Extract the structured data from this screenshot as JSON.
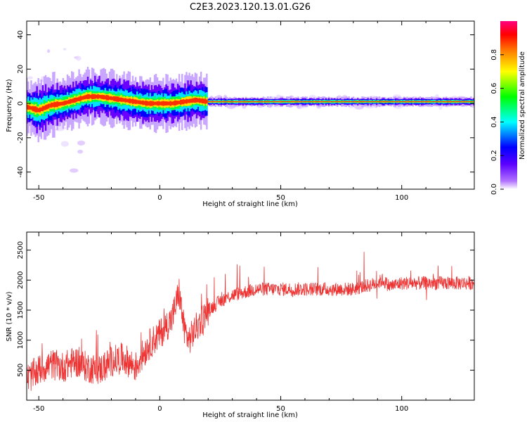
{
  "title": "C2E3.2023.120.13.01.G26",
  "chart_data": [
    {
      "type": "heatmap",
      "xlabel": "Height of straight line (km)",
      "ylabel": "Frequency (Hz)",
      "xlim": [
        -55,
        130
      ],
      "ylim": [
        -50,
        48
      ],
      "xticks": [
        -50,
        0,
        50,
        100
      ],
      "yticks": [
        -40,
        -20,
        0,
        20,
        40
      ],
      "colorbar": {
        "label": "Normalized spectral amplitude",
        "range": [
          0,
          1
        ],
        "ticks": [
          "0.0",
          "0.2",
          "0.4",
          "0.6",
          "0.8"
        ],
        "colors": [
          "#ffffff",
          "#7a00ff",
          "#0000ff",
          "#00ffff",
          "#00ff00",
          "#ffff00",
          "#ff8000",
          "#ff0000",
          "#ff0080"
        ]
      },
      "ridge": {
        "x": [
          -55,
          -50,
          -45,
          -40,
          -35,
          -30,
          -25,
          -20,
          -15,
          -10,
          -5,
          0,
          5,
          10,
          15,
          20,
          30,
          40,
          50,
          60,
          70,
          80,
          90,
          100,
          110,
          120,
          130
        ],
        "freq": [
          -2,
          -4,
          -1,
          0,
          2,
          4,
          4,
          3,
          2,
          1,
          0,
          0,
          0,
          1,
          2,
          1,
          1,
          1,
          1,
          1,
          1,
          1,
          1,
          1,
          1,
          1,
          1
        ]
      }
    },
    {
      "type": "line",
      "xlabel": "Height of straight line (km)",
      "ylabel": "SNR (10 * v/v)",
      "xlim": [
        -55,
        130
      ],
      "ylim": [
        0,
        2800
      ],
      "xticks": [
        -50,
        0,
        50,
        100
      ],
      "yticks": [
        500,
        1000,
        1500,
        2000,
        2500
      ],
      "color": "#ee3333",
      "series": [
        {
          "x": [
            -55,
            -50,
            -45,
            -40,
            -35,
            -30,
            -25,
            -20,
            -15,
            -10,
            -5,
            0,
            5,
            8,
            10,
            12,
            15,
            20,
            25,
            30,
            40,
            50,
            60,
            70,
            80,
            85,
            90,
            92,
            95,
            100,
            110,
            120,
            130
          ],
          "values": [
            350,
            500,
            600,
            550,
            650,
            550,
            500,
            650,
            700,
            550,
            900,
            1100,
            1350,
            1800,
            1200,
            1000,
            1200,
            1500,
            1650,
            1750,
            1850,
            1850,
            1850,
            1850,
            1850,
            1900,
            1950,
            2000,
            1900,
            1950,
            1950,
            1950,
            1950
          ]
        }
      ]
    }
  ]
}
